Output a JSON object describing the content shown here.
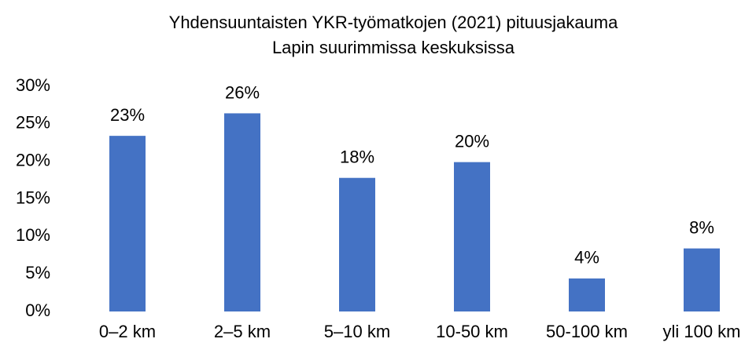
{
  "chart_data": {
    "type": "bar",
    "title": [
      "Yhdensuuntaisten YKR-työmatkojen (2021) pituusjakauma",
      "Lapin suurimmissa keskuksissa"
    ],
    "categories": [
      "0–2 km",
      "2–5 km",
      "5–10 km",
      "10-50 km",
      "50-100 km",
      "yli 100 km"
    ],
    "values": [
      23.4,
      26.4,
      17.8,
      19.9,
      4.4,
      8.4
    ],
    "value_labels": [
      "23%",
      "26%",
      "18%",
      "20%",
      "4%",
      "8%"
    ],
    "color": "#4472c4",
    "ylim": [
      0,
      30
    ],
    "yticks": [
      {
        "value": 0,
        "label": "0%"
      },
      {
        "value": 5,
        "label": "5%"
      },
      {
        "value": 10,
        "label": "10%"
      },
      {
        "value": 15,
        "label": "15%"
      },
      {
        "value": 20,
        "label": "20%"
      },
      {
        "value": 25,
        "label": "25%"
      },
      {
        "value": 30,
        "label": "30%"
      }
    ],
    "grid": false
  }
}
